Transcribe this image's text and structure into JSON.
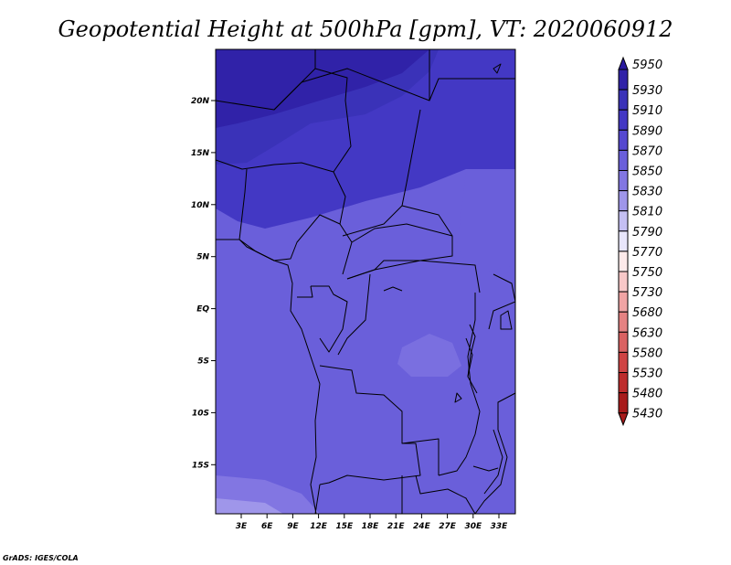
{
  "title": "Geopotential Height at 500hPa [gpm], VT: 2020060912",
  "credit": "GrADS: IGES/COLA",
  "map": {
    "lat_labels": [
      "20N",
      "15N",
      "10N",
      "5N",
      "EQ",
      "5S",
      "10S",
      "15S"
    ],
    "lon_labels": [
      "3E",
      "6E",
      "9E",
      "12E",
      "15E",
      "18E",
      "21E",
      "24E",
      "27E",
      "30E",
      "33E"
    ]
  },
  "colorbar": {
    "labels": [
      "5950",
      "5930",
      "5910",
      "5890",
      "5870",
      "5850",
      "5830",
      "5810",
      "5790",
      "5770",
      "5750",
      "5730",
      "5680",
      "5630",
      "5580",
      "5530",
      "5480",
      "5430"
    ],
    "colors": [
      "#2a1aa0",
      "#3022a8",
      "#3a32b8",
      "#4338c4",
      "#5548d0",
      "#6a5fda",
      "#8276e2",
      "#9f96ea",
      "#c4bff3",
      "#e8e6fb",
      "#fdeaea",
      "#f8c8c8",
      "#f0a4a4",
      "#e58282",
      "#da6262",
      "#cf4444",
      "#bd2c2c",
      "#a81b1b"
    ]
  }
}
